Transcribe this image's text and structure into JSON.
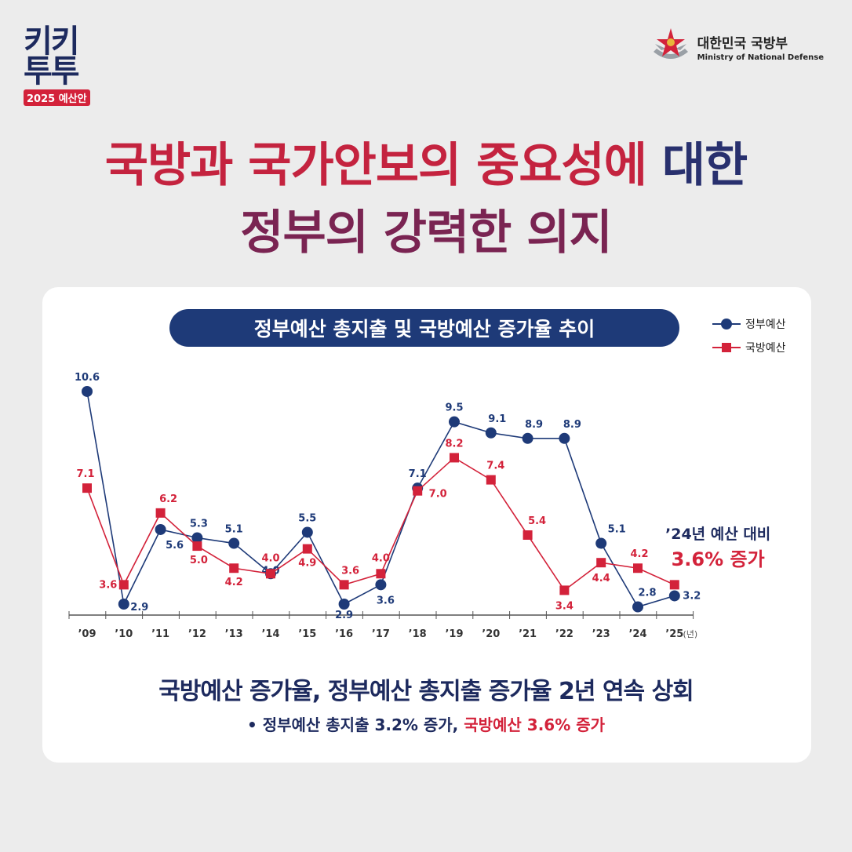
{
  "logo": {
    "line1": "키키",
    "line2": "투투",
    "tag": "2025 예산안"
  },
  "ministry": {
    "name_ko": "대한민국 국방부",
    "name_en": "Ministry of National Defense"
  },
  "headline": {
    "line1a": "국방과 국가안보의 중요성에 ",
    "line1b": "대한",
    "line2": "정부의 강력한 의지"
  },
  "pill_title": "정부예산 총지출 및 국방예산 증가율 추이",
  "legend": {
    "gov": "정부예산",
    "def": "국방예산"
  },
  "note": {
    "line1": "’24년 예산 대비",
    "line2": "3.6% 증가"
  },
  "summary": "국방예산 증가율, 정부예산 총지출 증가율 2년 연속 상회",
  "bullet": {
    "prefix": "• 정부예산 총지출 3.2% 증가, ",
    "highlight": "국방예산 3.6% 증가"
  },
  "colors": {
    "gov": "#1e3a78",
    "def": "#d3223a",
    "pill": "#1e3a78"
  },
  "chart_data": {
    "type": "line",
    "categories": [
      "’09",
      "’10",
      "’11",
      "’12",
      "’13",
      "’14",
      "’15",
      "’16",
      "’17",
      "’18",
      "’19",
      "’20",
      "’21",
      "’22",
      "’23",
      "’24",
      "’25"
    ],
    "x_unit": "(년)",
    "series": [
      {
        "name": "정부예산",
        "values": [
          10.6,
          2.9,
          5.6,
          5.3,
          5.1,
          4.0,
          5.5,
          2.9,
          3.6,
          7.1,
          9.5,
          9.1,
          8.9,
          8.9,
          5.1,
          2.8,
          3.2
        ],
        "color": "#1e3a78",
        "marker": "circle"
      },
      {
        "name": "국방예산",
        "values": [
          7.1,
          3.6,
          6.2,
          5.0,
          4.2,
          4.0,
          4.9,
          3.6,
          4.0,
          7.0,
          8.2,
          7.4,
          5.4,
          3.4,
          4.4,
          4.2,
          3.6
        ],
        "color": "#d3223a",
        "marker": "square"
      }
    ]
  }
}
